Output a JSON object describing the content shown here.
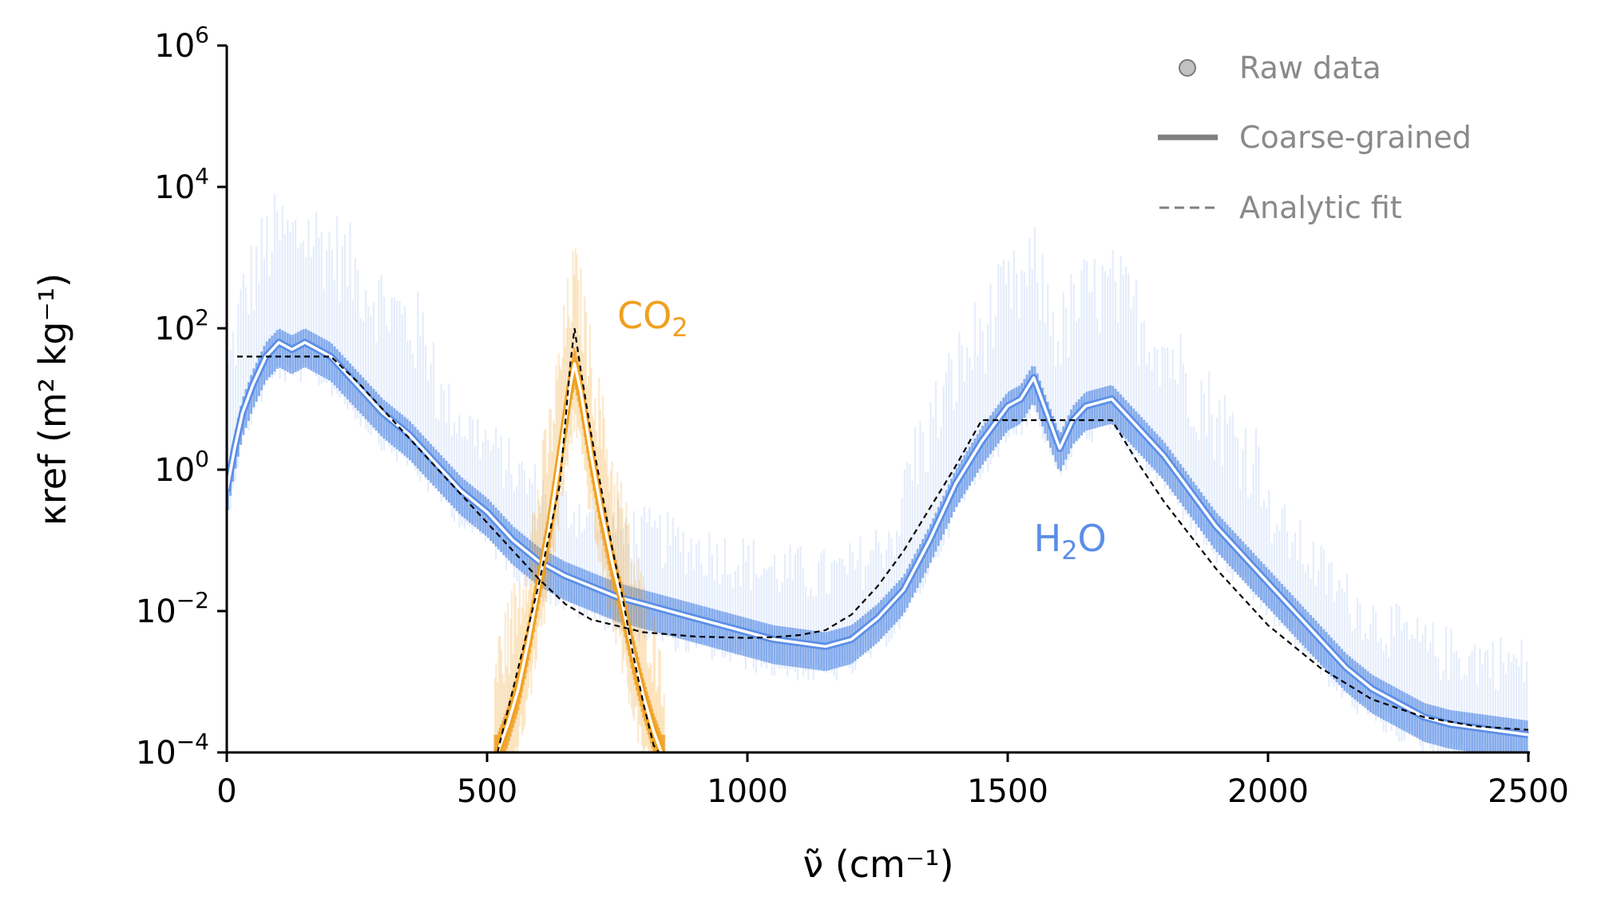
{
  "chart_data": {
    "type": "line",
    "xlabel": "ν̃ (cm⁻¹)",
    "ylabel": "κref (m² kg⁻¹)",
    "x_axis": {
      "range": [
        0,
        2500
      ],
      "ticks": [
        0,
        500,
        1000,
        1500,
        2000,
        2500
      ],
      "tick_labels": [
        "0",
        "500",
        "1000",
        "1500",
        "2000",
        "2500"
      ]
    },
    "y_axis": {
      "scale": "log",
      "range_log10": [
        -4,
        6
      ],
      "ticks_log10": [
        -4,
        -2,
        0,
        2,
        4,
        6
      ],
      "tick_labels": [
        {
          "base": "10",
          "exp": "−4"
        },
        {
          "base": "10",
          "exp": "−2"
        },
        {
          "base": "10",
          "exp": "0"
        },
        {
          "base": "10",
          "exp": "2"
        },
        {
          "base": "10",
          "exp": "4"
        },
        {
          "base": "10",
          "exp": "6"
        }
      ]
    },
    "legend": {
      "position": "top-right",
      "entries": [
        {
          "label": "Raw data",
          "style": "marker"
        },
        {
          "label": "Coarse-grained",
          "style": "solid"
        },
        {
          "label": "Analytic fit",
          "style": "dashed"
        }
      ]
    },
    "species": [
      {
        "name": "H2O",
        "label_main": "H",
        "label_sub": "2",
        "label_tail": "O",
        "label_pos": [
          1550,
          -1.15
        ],
        "color": "#5b8ee6",
        "coarse_grained": {
          "x": [
            0,
            15,
            30,
            50,
            75,
            100,
            125,
            150,
            175,
            200,
            225,
            250,
            275,
            300,
            350,
            400,
            450,
            500,
            550,
            600,
            650,
            700,
            750,
            800,
            850,
            900,
            950,
            1000,
            1050,
            1100,
            1150,
            1200,
            1250,
            1300,
            1350,
            1400,
            1450,
            1500,
            1525,
            1550,
            1575,
            1600,
            1625,
            1650,
            1700,
            1750,
            1800,
            1850,
            1900,
            1950,
            2000,
            2050,
            2100,
            2150,
            2200,
            2250,
            2300,
            2350,
            2400,
            2450,
            2500
          ],
          "log10_kappa": [
            -0.3,
            0.3,
            0.8,
            1.2,
            1.6,
            1.8,
            1.7,
            1.8,
            1.7,
            1.6,
            1.4,
            1.2,
            1.0,
            0.8,
            0.5,
            0.1,
            -0.3,
            -0.6,
            -1.0,
            -1.3,
            -1.5,
            -1.65,
            -1.8,
            -1.9,
            -2.0,
            -2.1,
            -2.2,
            -2.3,
            -2.4,
            -2.45,
            -2.5,
            -2.4,
            -2.1,
            -1.7,
            -1.0,
            -0.2,
            0.4,
            0.9,
            1.0,
            1.3,
            0.8,
            0.3,
            0.7,
            0.9,
            1.0,
            0.6,
            0.2,
            -0.3,
            -0.8,
            -1.2,
            -1.6,
            -2.0,
            -2.4,
            -2.8,
            -3.1,
            -3.3,
            -3.5,
            -3.6,
            -3.65,
            -3.7,
            -3.75
          ]
        },
        "analytic_fit": {
          "x": [
            20,
            200,
            250,
            300,
            350,
            400,
            450,
            500,
            550,
            600,
            650,
            700,
            800,
            900,
            1000,
            1050,
            1100,
            1150,
            1200,
            1250,
            1300,
            1350,
            1400,
            1450,
            1700,
            1750,
            1800,
            1900,
            2000,
            2100,
            2200,
            2300,
            2400,
            2500
          ],
          "log10_kappa": [
            1.6,
            1.6,
            1.25,
            0.85,
            0.45,
            0.05,
            -0.35,
            -0.75,
            -1.15,
            -1.55,
            -1.9,
            -2.12,
            -2.3,
            -2.36,
            -2.38,
            -2.37,
            -2.34,
            -2.27,
            -2.05,
            -1.65,
            -1.15,
            -0.55,
            0.05,
            0.7,
            0.7,
            0.1,
            -0.45,
            -1.4,
            -2.2,
            -2.8,
            -3.25,
            -3.5,
            -3.63,
            -3.68
          ]
        }
      },
      {
        "name": "CO2",
        "label_main": "CO",
        "label_sub": "2",
        "label_tail": "",
        "label_pos": [
          750,
          2.0
        ],
        "color": "#f0a020",
        "coarse_grained": {
          "x": [
            520,
            540,
            560,
            580,
            600,
            620,
            640,
            660,
            668,
            680,
            700,
            720,
            740,
            760,
            780,
            800,
            820,
            835
          ],
          "log10_kappa": [
            -4.0,
            -3.6,
            -3.1,
            -2.4,
            -1.6,
            -0.8,
            0.2,
            1.2,
            1.5,
            1.1,
            0.2,
            -0.6,
            -1.3,
            -1.9,
            -2.6,
            -3.2,
            -3.7,
            -4.0
          ]
        },
        "analytic_fit": {
          "x": [
            520,
            540,
            560,
            580,
            600,
            620,
            640,
            660,
            668,
            680,
            700,
            720,
            740,
            760,
            780,
            800,
            820,
            830
          ],
          "log10_kappa": [
            -4.0,
            -3.4,
            -2.8,
            -2.2,
            -1.6,
            -0.9,
            -0.2,
            1.5,
            2.0,
            1.4,
            0.5,
            -0.3,
            -1.1,
            -1.8,
            -2.6,
            -3.3,
            -3.9,
            -4.0
          ]
        }
      }
    ]
  }
}
